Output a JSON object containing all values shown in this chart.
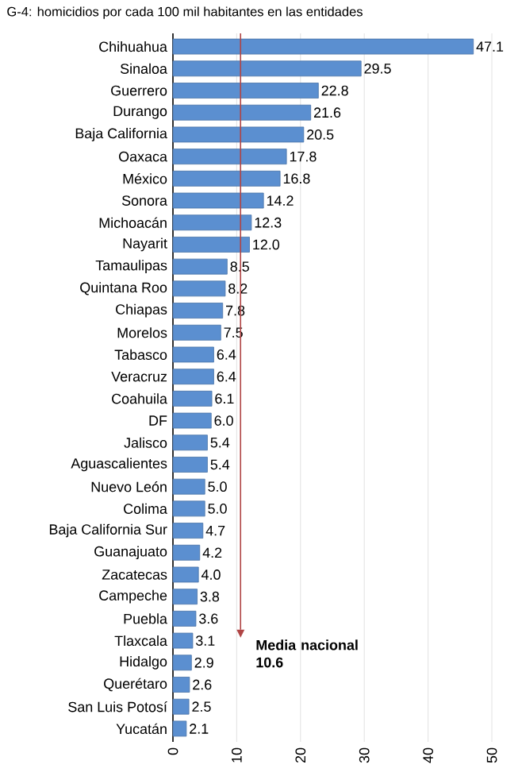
{
  "chart_data": {
    "type": "bar",
    "orientation": "horizontal",
    "title": "G-4: homicidios por cada 100 mil habitantes en las entidades",
    "categories": [
      "Chihuahua",
      "Sinaloa",
      "Guerrero",
      "Durango",
      "Baja California",
      "Oaxaca",
      "México",
      "Sonora",
      "Michoacán",
      "Nayarit",
      "Tamaulipas",
      "Quintana Roo",
      "Chiapas",
      "Morelos",
      "Tabasco",
      "Veracruz",
      "Coahuila",
      "DF",
      "Jalisco",
      "Aguascalientes",
      "Nuevo León",
      "Colima",
      "Baja California Sur",
      "Guanajuato",
      "Zacatecas",
      "Campeche",
      "Puebla",
      "Tlaxcala",
      "Hidalgo",
      "Querétaro",
      "San Luis Potosí",
      "Yucatán"
    ],
    "values": [
      47.1,
      29.5,
      22.8,
      21.6,
      20.5,
      17.8,
      16.8,
      14.2,
      12.3,
      12.0,
      8.5,
      8.2,
      7.8,
      7.5,
      6.4,
      6.4,
      6.1,
      6.0,
      5.4,
      5.4,
      5.0,
      5.0,
      4.7,
      4.2,
      4.0,
      3.8,
      3.6,
      3.1,
      2.9,
      2.6,
      2.5,
      2.1
    ],
    "value_labels": [
      "47.1",
      "29.5",
      "22.8",
      "21.6",
      "20.5",
      "17.8",
      "16.8",
      "14.2",
      "12.3",
      "12.0",
      "8.5",
      "8.2",
      "7.8",
      "7.5",
      "6.4",
      "6.4",
      "6.1",
      "6.0",
      "5.4",
      "5.4",
      "5.0",
      "5.0",
      "4.7",
      "4.2",
      "4.0",
      "3.8",
      "3.6",
      "3.1",
      "2.9",
      "2.6",
      "2.5",
      "2.1"
    ],
    "color": "#5b8fd0",
    "xlim": [
      0,
      50
    ],
    "xticks": [
      0,
      10,
      20,
      30,
      40,
      50
    ],
    "grid": "x",
    "ref_lines": [
      {
        "axis": "x",
        "value": 10.6,
        "label": "Media nacional 10.6",
        "color": "#b04545"
      }
    ]
  }
}
